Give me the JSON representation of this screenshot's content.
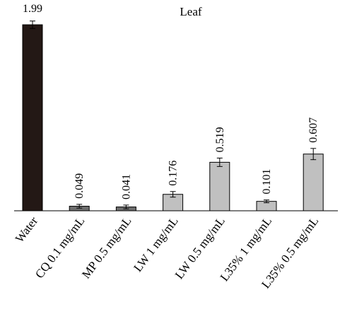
{
  "chart_data": {
    "type": "bar",
    "title": "Leaf",
    "xlabel": "",
    "ylabel": "",
    "categories": [
      "Water",
      "CQ 0.1 mg/mL",
      "MP 0.5 mg/mL",
      "LW 1 mg/mL",
      "LW 0.5 mg/mL",
      "L35% 1 mg/mL",
      "L35%  0.5 mg/mL"
    ],
    "values": [
      1.99,
      0.049,
      0.041,
      0.176,
      0.519,
      0.101,
      0.607
    ],
    "value_labels": [
      "1.99",
      "0.049",
      "0.041",
      "0.176",
      "0.519",
      "0.101",
      "0.607"
    ],
    "error": [
      0.04,
      0.02,
      0.02,
      0.03,
      0.045,
      0.015,
      0.06
    ],
    "ylim": [
      0,
      2.05
    ],
    "grid": false,
    "bar_colors": [
      "#231815",
      "#6d6d6d",
      "#6d6d6d",
      "#c0c0c0",
      "#c0c0c0",
      "#c0c0c0",
      "#c0c0c0"
    ]
  }
}
